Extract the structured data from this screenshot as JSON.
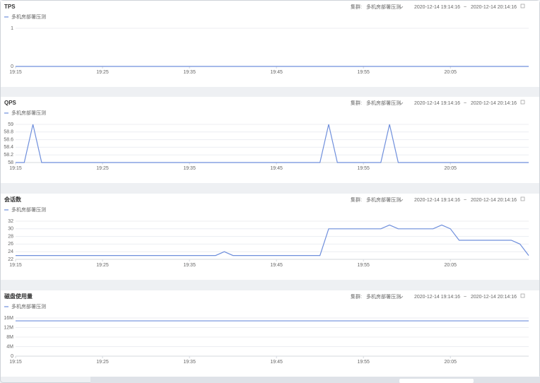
{
  "charts": [
    {
      "title": "TPS",
      "cluster_label": "集群:",
      "cluster": "多机房部署压测",
      "start": "2020-12-14 19:14:16",
      "separator": "~",
      "end": "2020-12-14 20:14:16",
      "chart_data": {
        "type": "line",
        "x": [
          "19:15",
          "20:14"
        ],
        "xlim": [
          "19:15",
          "20:14"
        ],
        "xticks": [
          "19:15",
          "19:25",
          "19:35",
          "19:45",
          "19:55",
          "20:05"
        ],
        "ylim": [
          0,
          1
        ],
        "yticks": [
          0,
          1
        ],
        "grid": true,
        "series": [
          {
            "name": "多机房部署压测",
            "color": "#6f8fdc",
            "values": [
              0,
              0
            ]
          }
        ]
      }
    },
    {
      "title": "QPS",
      "cluster_label": "集群:",
      "cluster": "多机房部署压测",
      "start": "2020-12-14 19:14:16",
      "separator": "~",
      "end": "2020-12-14 20:14:16",
      "chart_data": {
        "type": "line",
        "x": [
          "19:15",
          "19:16",
          "19:17",
          "19:18",
          "19:50",
          "19:51",
          "19:52",
          "19:57",
          "19:58",
          "19:59",
          "20:14"
        ],
        "xlim": [
          "19:15",
          "20:14"
        ],
        "xticks": [
          "19:15",
          "19:25",
          "19:35",
          "19:45",
          "19:55",
          "20:05"
        ],
        "ylim": [
          58,
          59
        ],
        "yticks": [
          58,
          58.2,
          58.4,
          58.6,
          58.8,
          59
        ],
        "grid": true,
        "series": [
          {
            "name": "多机房部署压测",
            "color": "#6f8fdc",
            "values": [
              58,
              58,
              59,
              58,
              58,
              59,
              58,
              58,
              59,
              58,
              58
            ]
          }
        ]
      }
    },
    {
      "title": "会话数",
      "cluster_label": "集群:",
      "cluster": "多机房部署压测",
      "start": "2020-12-14 19:14:16",
      "separator": "~",
      "end": "2020-12-14 20:14:16",
      "chart_data": {
        "type": "line",
        "x": [
          "19:15",
          "19:38",
          "19:39",
          "19:40",
          "19:50",
          "19:51",
          "19:57",
          "19:58",
          "19:59",
          "20:03",
          "20:04",
          "20:05",
          "20:06",
          "20:12",
          "20:13",
          "20:14"
        ],
        "xlim": [
          "19:15",
          "20:14"
        ],
        "xticks": [
          "19:15",
          "19:25",
          "19:35",
          "19:45",
          "19:55",
          "20:05"
        ],
        "ylim": [
          22,
          32
        ],
        "yticks": [
          22,
          24,
          26,
          28,
          30,
          32
        ],
        "grid": true,
        "series": [
          {
            "name": "多机房部署压测",
            "color": "#6f8fdc",
            "values": [
              23,
              23,
              24,
              23,
              23,
              30,
              30,
              31,
              30,
              30,
              31,
              30,
              27,
              27,
              26,
              23
            ]
          }
        ]
      }
    },
    {
      "title": "磁盘使用量",
      "cluster_label": "集群:",
      "cluster": "多机房部署压测",
      "start": "2020-12-14 19:14:16",
      "separator": "~",
      "end": "2020-12-14 20:14:16",
      "chart_data": {
        "type": "line",
        "x": [
          "19:15",
          "20:14"
        ],
        "xlim": [
          "19:15",
          "20:14"
        ],
        "xticks": [
          "19:15",
          "19:25",
          "19:35",
          "19:45",
          "19:55",
          "20:05"
        ],
        "ylim": [
          0,
          16000000
        ],
        "yticks": [
          0,
          {
            "value": 4000000,
            "label": "4M"
          },
          {
            "value": 8000000,
            "label": "8M"
          },
          {
            "value": 12000000,
            "label": "12M"
          },
          {
            "value": 16000000,
            "label": "16M"
          }
        ],
        "grid": true,
        "series": [
          {
            "name": "多机房部署压测",
            "color": "#6f8fdc",
            "values": [
              14800000,
              14800000
            ]
          }
        ]
      }
    }
  ]
}
